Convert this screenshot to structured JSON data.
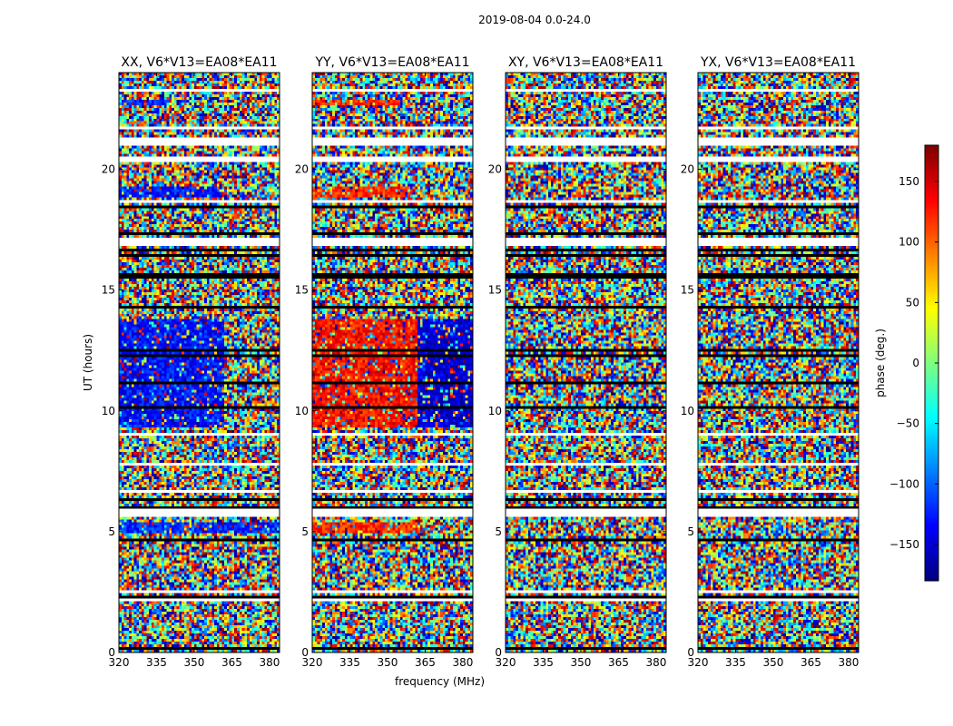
{
  "figure": {
    "suptitle": "2019-08-04 0.0-24.0"
  },
  "chart_data": [
    {
      "type": "heatmap",
      "title": "XX, V6*V13=EA08*EA11",
      "xlabel": "",
      "ylabel": "UT (hours)",
      "x_ticks": [
        "320",
        "335",
        "350",
        "365",
        "380"
      ],
      "y_ticks": [
        "0",
        "5",
        "10",
        "15",
        "20"
      ],
      "xlim": [
        320,
        384
      ],
      "ylim": [
        0,
        24
      ],
      "value": "phase (deg.)",
      "features": [
        {
          "t0": 4.95,
          "t1": 5.35,
          "f0": 320,
          "f1": 384,
          "phase": -120
        },
        {
          "t0": 9.3,
          "t1": 13.8,
          "f0": 320,
          "f1": 362,
          "phase": -130
        },
        {
          "t0": 18.8,
          "t1": 19.3,
          "f0": 320,
          "f1": 360,
          "phase": -130
        },
        {
          "t0": 22.7,
          "t1": 22.9,
          "f0": 320,
          "f1": 340,
          "phase": -120
        }
      ]
    },
    {
      "type": "heatmap",
      "title": "YY, V6*V13=EA08*EA11",
      "xlabel": "frequency (MHz)",
      "ylabel": "",
      "x_ticks": [
        "320",
        "335",
        "350",
        "365",
        "380"
      ],
      "y_ticks": [
        "0",
        "5",
        "10",
        "15",
        "20"
      ],
      "xlim": [
        320,
        384
      ],
      "ylim": [
        0,
        24
      ],
      "value": "phase (deg.)",
      "features": [
        {
          "t0": 4.95,
          "t1": 5.35,
          "f0": 320,
          "f1": 362,
          "phase": 120
        },
        {
          "t0": 9.3,
          "t1": 13.8,
          "f0": 320,
          "f1": 362,
          "phase": 130
        },
        {
          "t0": 9.3,
          "t1": 13.8,
          "f0": 362,
          "f1": 384,
          "phase": -150
        },
        {
          "t0": 18.8,
          "t1": 19.3,
          "f0": 320,
          "f1": 360,
          "phase": 120
        },
        {
          "t0": 22.7,
          "t1": 22.9,
          "f0": 320,
          "f1": 355,
          "phase": 120
        }
      ]
    },
    {
      "type": "heatmap",
      "title": "XY, V6*V13=EA08*EA11",
      "xlabel": "",
      "ylabel": "",
      "x_ticks": [
        "320",
        "335",
        "350",
        "365",
        "380"
      ],
      "y_ticks": [
        "0",
        "5",
        "10",
        "15",
        "20"
      ],
      "xlim": [
        320,
        384
      ],
      "ylim": [
        0,
        24
      ],
      "value": "phase (deg.)",
      "features": []
    },
    {
      "type": "heatmap",
      "title": "YX, V6*V13=EA08*EA11",
      "xlabel": "",
      "ylabel": "",
      "x_ticks": [
        "320",
        "335",
        "350",
        "365",
        "380"
      ],
      "y_ticks": [
        "0",
        "5",
        "10",
        "15",
        "20"
      ],
      "xlim": [
        320,
        384
      ],
      "ylim": [
        0,
        24
      ],
      "value": "phase (deg.)",
      "features": []
    }
  ],
  "colorbar": {
    "label": "phase (deg.)",
    "range": [
      -180,
      180
    ],
    "ticks": [
      "150",
      "100",
      "50",
      "0",
      "−50",
      "−100",
      "−150"
    ],
    "colormap": "jet"
  }
}
